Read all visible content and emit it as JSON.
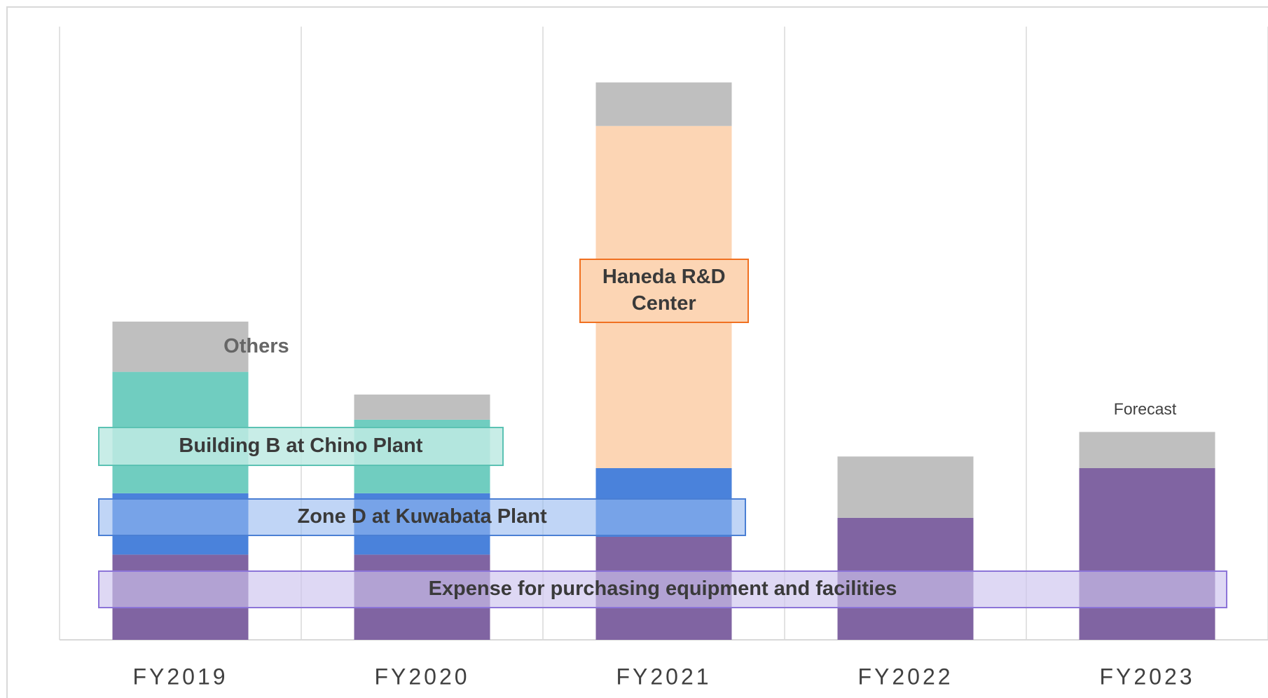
{
  "chart_data": {
    "type": "bar",
    "stacked": true,
    "categories": [
      "FY2019",
      "FY2020",
      "FY2021",
      "FY2022",
      "FY2023"
    ],
    "series": [
      {
        "name": "Expense for purchasing equipment and facilities",
        "color": "#8064a2",
        "values": [
          13.9,
          13.9,
          16.8,
          19.9,
          28.0
        ]
      },
      {
        "name": "Zone D at Kuwabata Plant",
        "color": "#4a82db",
        "values": [
          10.0,
          10.0,
          11.2,
          null,
          null
        ]
      },
      {
        "name": "Building B at Chino Plant",
        "color": "#70cdc0",
        "values": [
          19.8,
          12.0,
          null,
          null,
          null
        ]
      },
      {
        "name": "Haneda R&D Center",
        "color": "#fcd5b4",
        "values": [
          null,
          null,
          55.8,
          null,
          null
        ]
      },
      {
        "name": "Others",
        "color": "#bfbfbf",
        "values": [
          8.2,
          4.1,
          7.1,
          10.0,
          5.9
        ]
      }
    ],
    "annotations": [
      "Forecast"
    ],
    "ylim": [
      0,
      100
    ],
    "grid": true
  }
}
